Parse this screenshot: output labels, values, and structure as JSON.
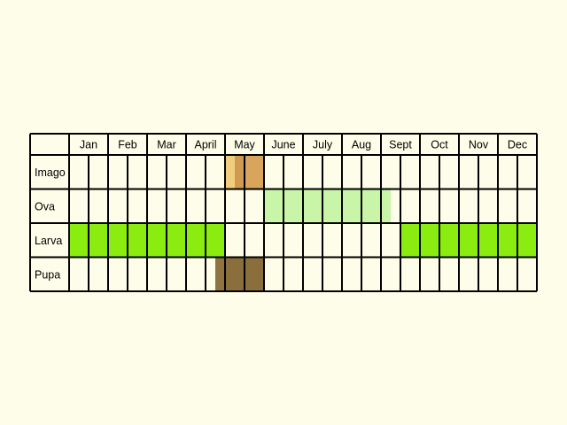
{
  "chart_data": {
    "type": "table",
    "title": "",
    "months": [
      "Jan",
      "Feb",
      "Mar",
      "April",
      "May",
      "June",
      "July",
      "Aug",
      "Sept",
      "Oct",
      "Nov",
      "Dec"
    ],
    "subdivisions_per_month": 2,
    "stages": [
      {
        "label": "Imago",
        "spans": [
          {
            "start": 8.0,
            "end": 8.5,
            "color": "#f2cd7e"
          },
          {
            "start": 8.5,
            "end": 9.0,
            "color": "#d09b50"
          },
          {
            "start": 9.0,
            "end": 10.0,
            "color": "#d9a55d"
          }
        ]
      },
      {
        "label": "Ova",
        "spans": [
          {
            "start": 10.0,
            "end": 16.5,
            "color": "#c8f5a8"
          }
        ]
      },
      {
        "label": "Larva",
        "spans": [
          {
            "start": 0.0,
            "end": 8.0,
            "color": "#8aec0f"
          },
          {
            "start": 17.0,
            "end": 24.0,
            "color": "#8aec0f"
          }
        ]
      },
      {
        "label": "Pupa",
        "spans": [
          {
            "start": 7.5,
            "end": 8.0,
            "color": "#8e7440"
          },
          {
            "start": 8.0,
            "end": 10.0,
            "color": "#8a6e3c"
          }
        ]
      }
    ],
    "colors": {
      "background": "#fefde9",
      "grid": "#000000"
    }
  }
}
